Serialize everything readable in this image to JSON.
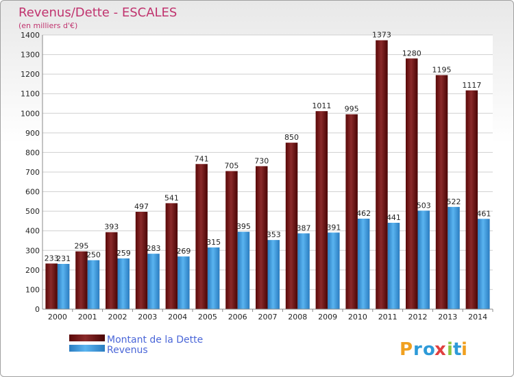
{
  "chart_data": {
    "type": "bar",
    "title": "Revenus/Dette - ESCALES",
    "subtitle": "(en milliers d'€)",
    "categories": [
      "2000",
      "2001",
      "2002",
      "2003",
      "2004",
      "2005",
      "2006",
      "2007",
      "2008",
      "2009",
      "2010",
      "2011",
      "2012",
      "2013",
      "2014"
    ],
    "series": [
      {
        "name": "Montant de la Dette",
        "color": "#7a1a1a",
        "values": [
          233,
          295,
          393,
          497,
          541,
          741,
          705,
          730,
          850,
          1011,
          995,
          1373,
          1280,
          1195,
          1117
        ]
      },
      {
        "name": "Revenus",
        "color": "#3a9ee0",
        "values": [
          231,
          250,
          259,
          283,
          269,
          315,
          395,
          353,
          387,
          391,
          462,
          441,
          503,
          522,
          461
        ]
      }
    ],
    "ylim": [
      0,
      1400
    ],
    "yticks": [
      0,
      100,
      200,
      300,
      400,
      500,
      600,
      700,
      800,
      900,
      1000,
      1100,
      1200,
      1300,
      1400
    ],
    "grid": true,
    "legend_position": "bottom-left"
  },
  "logo": {
    "text": "Proxiti",
    "letters": [
      "P",
      "r",
      "o",
      "x",
      "i",
      "t",
      "i"
    ],
    "colors": [
      "#f0a020",
      "#2d9ad8",
      "#2d9ad8",
      "#e04040",
      "#8cc63f",
      "#2d9ad8",
      "#f0a020"
    ]
  }
}
